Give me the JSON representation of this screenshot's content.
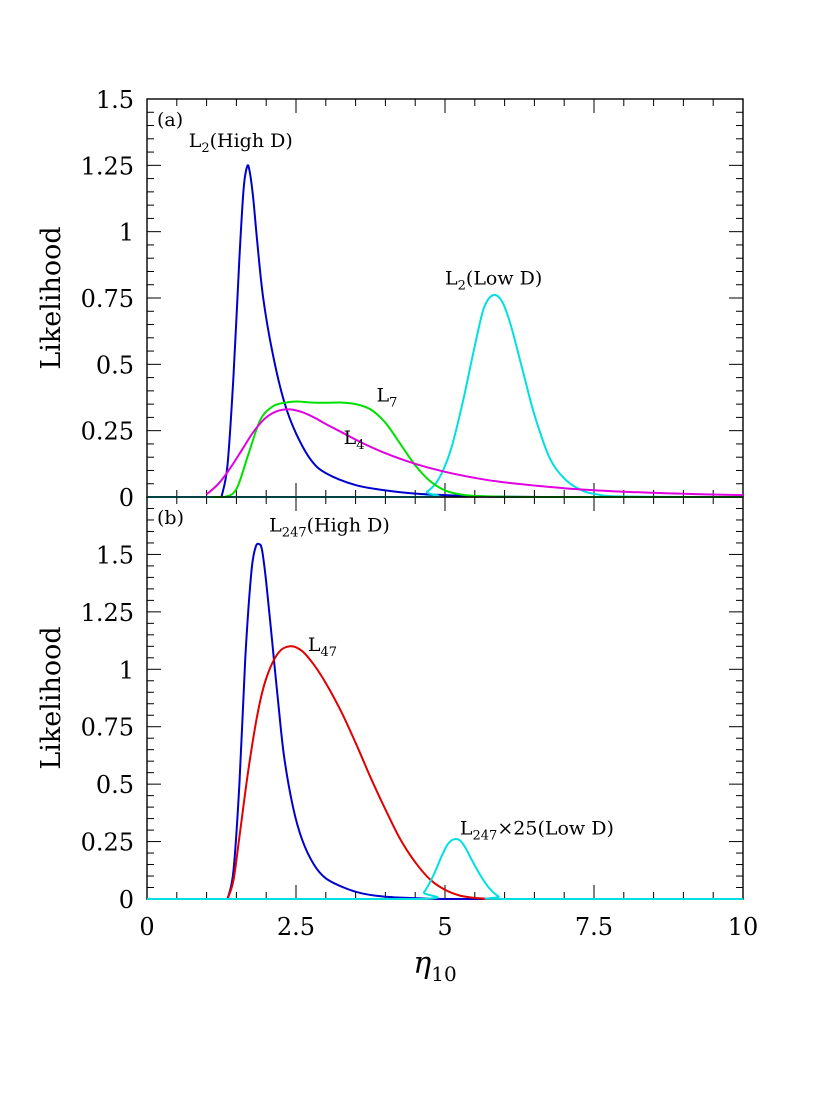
{
  "chart_data": [
    {
      "type": "line",
      "panel_label": "(a)",
      "xlim": [
        0,
        10
      ],
      "ylim": [
        0,
        1.5
      ],
      "xlabel": "",
      "ylabel": "Likelihood",
      "xticks": [],
      "yticks": [
        "0",
        "0.25",
        "0.5",
        "0.75",
        "1",
        "1.25",
        "1.5"
      ],
      "series": [
        {
          "color": "#0000cc",
          "x": [
            1.25,
            1.35,
            1.45,
            1.55,
            1.62,
            1.68,
            1.72,
            1.78,
            1.85,
            1.95,
            2.1,
            2.3,
            2.5,
            2.75,
            3.0,
            3.5,
            4.0,
            4.5,
            5.0,
            5.5,
            6.0,
            7.0,
            8.0,
            10.0
          ],
          "y": [
            0.0,
            0.12,
            0.45,
            0.9,
            1.16,
            1.245,
            1.23,
            1.13,
            0.96,
            0.75,
            0.55,
            0.36,
            0.24,
            0.14,
            0.09,
            0.045,
            0.025,
            0.013,
            0.007,
            0.003,
            0.001,
            0.0,
            0.0,
            0.0
          ]
        },
        {
          "color": "#00e0e0",
          "x": [
            0.0,
            4.5,
            4.7,
            4.9,
            5.1,
            5.3,
            5.5,
            5.65,
            5.8,
            5.95,
            6.1,
            6.3,
            6.5,
            6.75,
            7.0,
            7.25,
            7.5,
            8.0,
            10.0
          ],
          "y": [
            0.0,
            0.0,
            0.02,
            0.07,
            0.18,
            0.36,
            0.57,
            0.71,
            0.76,
            0.74,
            0.65,
            0.48,
            0.31,
            0.15,
            0.07,
            0.03,
            0.012,
            0.002,
            0.0
          ],
          "name": "L₂(Low D)"
        },
        {
          "color": "#00e000",
          "x": [
            1.1,
            1.3,
            1.5,
            1.7,
            1.9,
            2.1,
            2.3,
            2.5,
            2.75,
            3.0,
            3.25,
            3.5,
            3.75,
            4.0,
            4.25,
            4.5,
            4.75,
            5.0,
            5.25,
            5.5,
            6.0,
            7.0,
            10.0
          ],
          "y": [
            0.0,
            0.0,
            0.03,
            0.16,
            0.29,
            0.34,
            0.355,
            0.36,
            0.356,
            0.355,
            0.356,
            0.35,
            0.33,
            0.28,
            0.2,
            0.12,
            0.06,
            0.025,
            0.01,
            0.004,
            0.001,
            0.0,
            0.0
          ],
          "name": "L₇"
        },
        {
          "color": "#e000e0",
          "x": [
            1.0,
            1.2,
            1.4,
            1.6,
            1.8,
            2.0,
            2.2,
            2.4,
            2.6,
            2.8,
            3.0,
            3.3,
            3.6,
            4.0,
            4.5,
            5.0,
            5.5,
            6.0,
            7.0,
            8.0,
            9.0,
            10.0
          ],
          "y": [
            0.01,
            0.05,
            0.11,
            0.18,
            0.25,
            0.3,
            0.325,
            0.33,
            0.32,
            0.3,
            0.275,
            0.24,
            0.205,
            0.165,
            0.125,
            0.095,
            0.072,
            0.055,
            0.033,
            0.02,
            0.012,
            0.007
          ],
          "name": "L₄"
        }
      ],
      "annotations": [
        {
          "id": "l2-high",
          "base": "L",
          "sub": "2",
          "rest": "(High D)",
          "x": 0.7,
          "y": 1.32
        },
        {
          "id": "l2-low",
          "base": "L",
          "sub": "2",
          "rest": "(Low D)",
          "x": 5.0,
          "y": 0.8
        },
        {
          "id": "l7",
          "base": "L",
          "sub": "7",
          "rest": "",
          "x": 3.85,
          "y": 0.36
        },
        {
          "id": "l4",
          "base": "L",
          "sub": "4",
          "rest": "",
          "x": 3.3,
          "y": 0.2
        }
      ]
    },
    {
      "type": "line",
      "panel_label": "(b)",
      "xlim": [
        0,
        10
      ],
      "ylim": [
        0,
        1.75
      ],
      "xlabel": "η₁₀",
      "ylabel": "Likelihood",
      "xticks": [
        "0",
        "2.5",
        "5",
        "7.5",
        "10"
      ],
      "yticks": [
        "0",
        "0.25",
        "0.5",
        "0.75",
        "1",
        "1.25",
        "1.5"
      ],
      "series": [
        {
          "color": "#0000cc",
          "x": [
            1.35,
            1.45,
            1.55,
            1.65,
            1.75,
            1.82,
            1.88,
            1.93,
            2.0,
            2.1,
            2.2,
            2.3,
            2.45,
            2.6,
            2.8,
            3.0,
            3.3,
            3.6,
            4.0,
            4.5,
            5.0,
            6.0,
            10.0
          ],
          "y": [
            0.0,
            0.12,
            0.5,
            1.05,
            1.42,
            1.53,
            1.545,
            1.52,
            1.38,
            1.12,
            0.86,
            0.62,
            0.4,
            0.26,
            0.15,
            0.09,
            0.05,
            0.025,
            0.01,
            0.004,
            0.0,
            0.0,
            0.0
          ]
        },
        {
          "color": "#e00000",
          "x": [
            1.35,
            1.45,
            1.55,
            1.7,
            1.85,
            2.0,
            2.2,
            2.4,
            2.6,
            2.8,
            3.0,
            3.25,
            3.5,
            3.75,
            4.0,
            4.25,
            4.5,
            4.75,
            5.0,
            5.25,
            5.5,
            5.75,
            6.0,
            10.0
          ],
          "y": [
            0.0,
            0.08,
            0.27,
            0.56,
            0.8,
            0.96,
            1.07,
            1.1,
            1.08,
            1.02,
            0.94,
            0.82,
            0.68,
            0.53,
            0.39,
            0.26,
            0.16,
            0.085,
            0.04,
            0.015,
            0.005,
            0.001,
            0.0,
            0.0
          ],
          "name": "L₄₇"
        },
        {
          "color": "#00e0e0",
          "x": [
            0.0,
            4.5,
            4.65,
            4.8,
            4.95,
            5.05,
            5.15,
            5.25,
            5.35,
            5.45,
            5.6,
            5.75,
            5.9,
            6.0,
            10.0
          ],
          "y": [
            0.0,
            0.0,
            0.03,
            0.1,
            0.19,
            0.24,
            0.26,
            0.255,
            0.22,
            0.17,
            0.1,
            0.045,
            0.01,
            0.0,
            0.0
          ],
          "name": "L₂₄₇×25(Low D)"
        }
      ],
      "annotations": [
        {
          "id": "l247-high",
          "base": "L",
          "sub": "247",
          "rest": "(High D)",
          "x": 2.05,
          "y": 1.6
        },
        {
          "id": "l47",
          "base": "L",
          "sub": "47",
          "rest": "",
          "x": 2.7,
          "y": 1.08
        },
        {
          "id": "l247-low",
          "base": "L",
          "sub": "247",
          "rest": "×25(Low D)",
          "x": 5.25,
          "y": 0.28
        }
      ]
    }
  ]
}
